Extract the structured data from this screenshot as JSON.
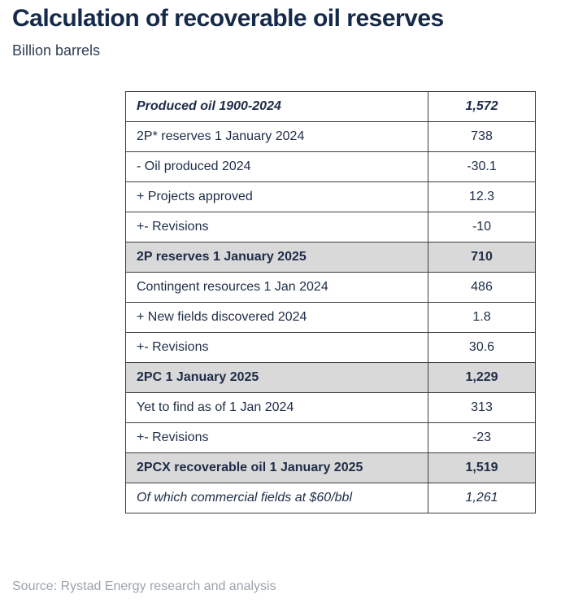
{
  "header": {
    "title": "Calculation of recoverable oil reserves",
    "subtitle": "Billion barrels"
  },
  "table": {
    "rows": [
      {
        "label": "Produced oil 1900-2024",
        "value": "1,572",
        "style": "bold-italic",
        "highlight": false
      },
      {
        "label": "2P* reserves 1 January 2024",
        "value": "738",
        "style": "regular",
        "highlight": false
      },
      {
        "label": "- Oil produced 2024",
        "value": "-30.1",
        "style": "regular",
        "highlight": false
      },
      {
        "label": "+ Projects approved",
        "value": "12.3",
        "style": "regular",
        "highlight": false
      },
      {
        "label": "+- Revisions",
        "value": "-10",
        "style": "regular",
        "highlight": false
      },
      {
        "label": "2P reserves 1 January 2025",
        "value": "710",
        "style": "bold",
        "highlight": true
      },
      {
        "label": "Contingent resources 1 Jan 2024",
        "value": "486",
        "style": "regular",
        "highlight": false
      },
      {
        "label": "+ New fields discovered 2024",
        "value": "1.8",
        "style": "regular",
        "highlight": false
      },
      {
        "label": "+- Revisions",
        "value": "30.6",
        "style": "regular",
        "highlight": false
      },
      {
        "label": "2PC 1 January 2025",
        "value": "1,229",
        "style": "bold",
        "highlight": true
      },
      {
        "label": "Yet to find as of 1 Jan 2024",
        "value": "313",
        "style": "regular",
        "highlight": false
      },
      {
        "label": "+- Revisions",
        "value": "-23",
        "style": "regular",
        "highlight": false
      },
      {
        "label": "2PCX recoverable oil 1 January 2025",
        "value": "1,519",
        "style": "bold",
        "highlight": true
      },
      {
        "label": "Of which commercial fields at $60/bbl",
        "value": "1,261",
        "style": "italic",
        "highlight": false
      }
    ]
  },
  "footer": {
    "source": "Source: Rystad Energy research and analysis"
  },
  "chart_data": {
    "type": "table",
    "title": "Calculation of recoverable oil reserves",
    "subtitle": "Billion barrels",
    "unit": "Billion barrels",
    "columns": [
      "Item",
      "Value"
    ],
    "rows": [
      [
        "Produced oil 1900-2024",
        1572
      ],
      [
        "2P* reserves 1 January 2024",
        738
      ],
      [
        "- Oil produced 2024",
        -30.1
      ],
      [
        "+ Projects approved",
        12.3
      ],
      [
        "+- Revisions",
        -10
      ],
      [
        "2P reserves 1 January 2025",
        710
      ],
      [
        "Contingent resources 1 Jan 2024",
        486
      ],
      [
        "+ New fields discovered 2024",
        1.8
      ],
      [
        "+- Revisions",
        30.6
      ],
      [
        "2PC 1 January 2025",
        1229
      ],
      [
        "Yet to find as of 1 Jan 2024",
        313
      ],
      [
        "+- Revisions",
        -23
      ],
      [
        "2PCX recoverable oil 1 January 2025",
        1519
      ],
      [
        "Of which commercial fields at $60/bbl",
        1261
      ]
    ],
    "emphasized_rows": [
      "Produced oil 1900-2024",
      "2P reserves 1 January 2025",
      "2PC 1 January 2025",
      "2PCX recoverable oil 1 January 2025"
    ],
    "source": "Source: Rystad Energy research and analysis"
  },
  "colors": {
    "title": "#152a4a",
    "subtitle": "#2f3e55",
    "text": "#1e2c48",
    "highlight": "#d9d9d9",
    "border": "#3d3d3d",
    "source": "#9aa4ae",
    "page-bg": "#ffffff"
  }
}
